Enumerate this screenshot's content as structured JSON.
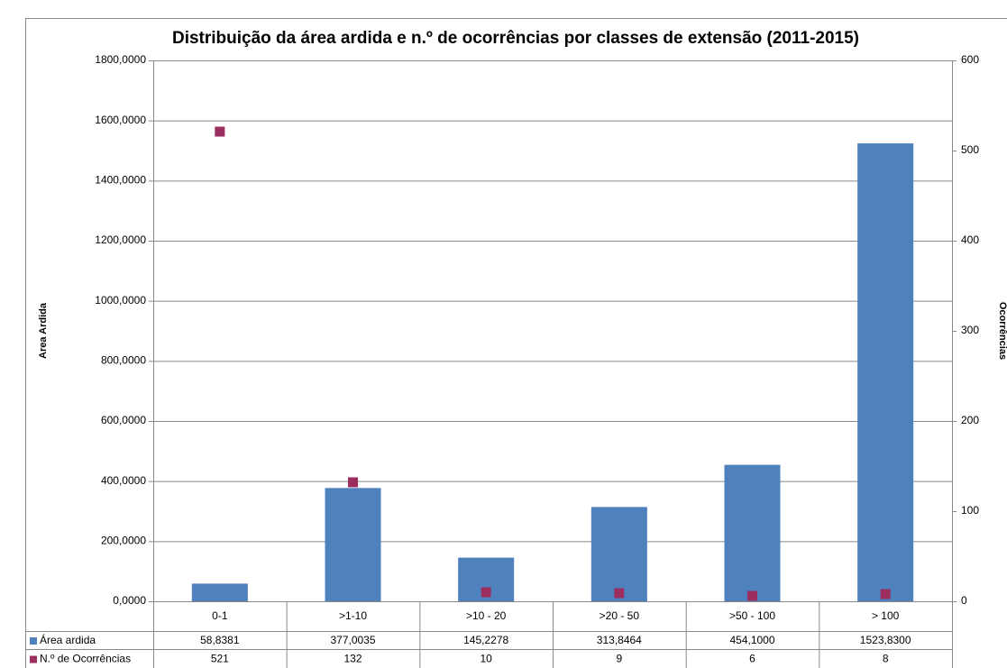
{
  "chart_data": {
    "type": "bar",
    "title": "Distribuição da área ardida e n.º de ocorrências por classes de extensão (2011-2015)",
    "y_label": "Area Ardida",
    "y2_label": "Ocorrências",
    "categories": [
      "0-1",
      ">1-10",
      ">10 - 20",
      ">20 - 50",
      ">50 - 100",
      "> 100"
    ],
    "series": [
      {
        "name": "Área ardida",
        "color": "#4f81bd",
        "type": "bar",
        "values": [
          58.8381,
          377.0035,
          145.2278,
          313.8464,
          454.1,
          1523.83
        ],
        "value_labels": [
          "58,8381",
          "377,0035",
          "145,2278",
          "313,8464",
          "454,1000",
          "1523,8300"
        ]
      },
      {
        "name": "N.º de Ocorrências",
        "color": "#9b2d5f",
        "type": "scatter",
        "axis": "y2",
        "values": [
          521,
          132,
          10,
          9,
          6,
          8
        ]
      }
    ],
    "ylim": [
      0,
      1800
    ],
    "yticks": [
      {
        "value": 0,
        "label": "0,0000"
      },
      {
        "value": 200,
        "label": "200,0000"
      },
      {
        "value": 400,
        "label": "400,0000"
      },
      {
        "value": 600,
        "label": "600,0000"
      },
      {
        "value": 800,
        "label": "800,0000"
      },
      {
        "value": 1000,
        "label": "1000,0000"
      },
      {
        "value": 1200,
        "label": "1200,0000"
      },
      {
        "value": 1400,
        "label": "1400,0000"
      },
      {
        "value": 1600,
        "label": "1600,0000"
      },
      {
        "value": 1800,
        "label": "1800,0000"
      }
    ],
    "y2lim": [
      0,
      600
    ],
    "y2ticks": [
      0,
      100,
      200,
      300,
      400,
      500,
      600
    ],
    "grid": true
  }
}
